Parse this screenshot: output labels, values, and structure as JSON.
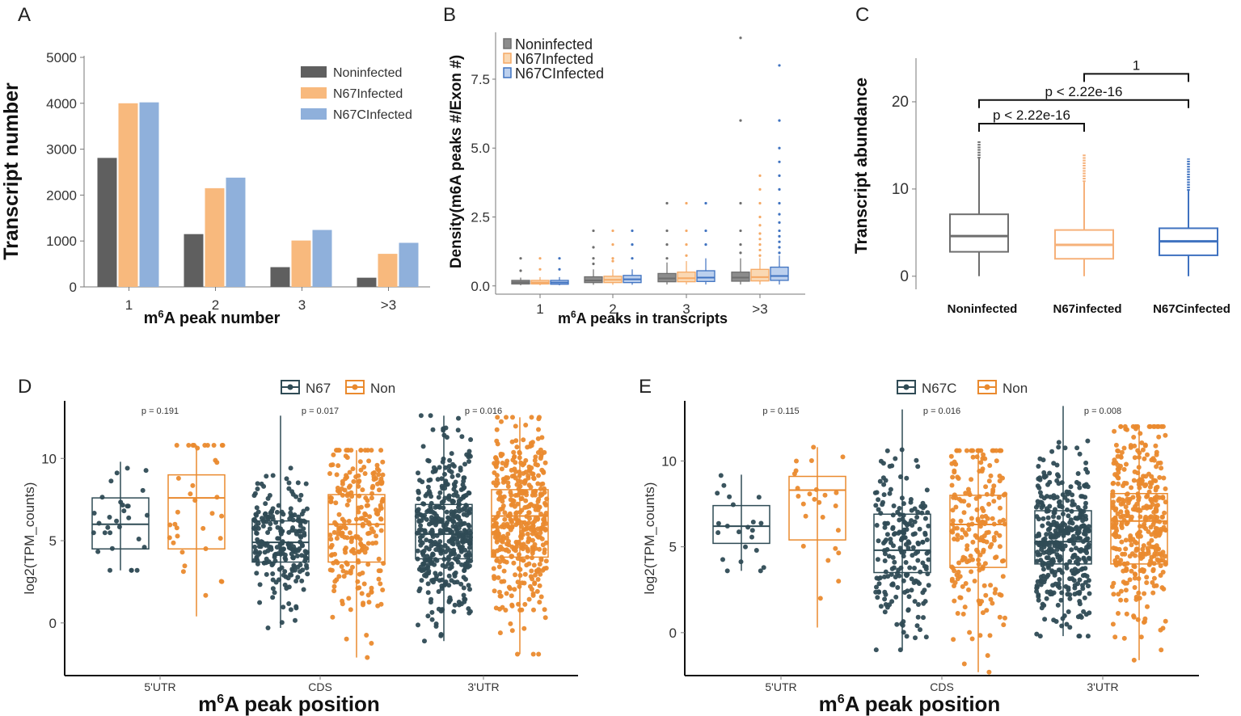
{
  "panels": {
    "A": "A",
    "B": "B",
    "C": "C",
    "D": "D",
    "E": "E"
  },
  "chart_data": [
    {
      "id": "A",
      "type": "bar",
      "categories": [
        "1",
        "2",
        "3",
        ">3"
      ],
      "series": [
        {
          "name": "Noninfected",
          "color": "#5f5f5f",
          "values": [
            2810,
            1150,
            430,
            200
          ]
        },
        {
          "name": "N67Infected",
          "color": "#f8b97d",
          "values": [
            4000,
            2150,
            1010,
            720
          ]
        },
        {
          "name": "N67CInfected",
          "color": "#8fb0db",
          "values": [
            4020,
            2380,
            1240,
            960
          ]
        }
      ],
      "xlabel": "m6A peak number",
      "ylabel": "Transcript number",
      "ylim": [
        0,
        5000
      ],
      "yticks": [
        0,
        1000,
        2000,
        3000,
        4000,
        5000
      ],
      "legend": "top-right"
    },
    {
      "id": "B",
      "type": "box",
      "categories": [
        "1",
        "2",
        "3",
        ">3"
      ],
      "series": [
        {
          "name": "Noninfected",
          "color": "#6e6e6e",
          "fill": "#8c8c8c",
          "boxes": [
            {
              "q1": 0.07,
              "median": 0.13,
              "q3": 0.2,
              "lo": 0.02,
              "hi": 0.3,
              "out": [
                0.55,
                1.0
              ]
            },
            {
              "q1": 0.12,
              "median": 0.2,
              "q3": 0.33,
              "lo": 0.04,
              "hi": 0.6,
              "out": [
                0.8,
                1.0,
                1.4,
                2.0
              ]
            },
            {
              "q1": 0.15,
              "median": 0.27,
              "q3": 0.45,
              "lo": 0.05,
              "hi": 0.85,
              "out": [
                1.0,
                1.5,
                2.0,
                3.0
              ]
            },
            {
              "q1": 0.17,
              "median": 0.3,
              "q3": 0.5,
              "lo": 0.05,
              "hi": 1.0,
              "out": [
                1.2,
                1.5,
                2.0,
                3.0,
                6.0,
                9.0
              ]
            }
          ]
        },
        {
          "name": "N67Infected",
          "color": "#f5a965",
          "fill": "#fad8b3",
          "boxes": [
            {
              "q1": 0.07,
              "median": 0.12,
              "q3": 0.2,
              "lo": 0.02,
              "hi": 0.32,
              "out": [
                0.6,
                1.0
              ]
            },
            {
              "q1": 0.12,
              "median": 0.22,
              "q3": 0.35,
              "lo": 0.04,
              "hi": 0.6,
              "out": [
                0.9,
                1.0,
                1.5,
                2.0
              ]
            },
            {
              "q1": 0.15,
              "median": 0.28,
              "q3": 0.5,
              "lo": 0.05,
              "hi": 0.9,
              "out": [
                1.1,
                1.5,
                2.0,
                3.0
              ]
            },
            {
              "q1": 0.18,
              "median": 0.32,
              "q3": 0.6,
              "lo": 0.05,
              "hi": 1.0,
              "out": [
                1.1,
                1.3,
                1.5,
                1.7,
                1.9,
                2.2,
                2.5,
                3.0,
                3.5,
                4.0
              ]
            }
          ]
        },
        {
          "name": "N67CInfected",
          "color": "#3f72c0",
          "fill": "#bcd0ee",
          "boxes": [
            {
              "q1": 0.06,
              "median": 0.12,
              "q3": 0.2,
              "lo": 0.02,
              "hi": 0.32,
              "out": [
                0.6,
                1.0
              ]
            },
            {
              "q1": 0.12,
              "median": 0.24,
              "q3": 0.38,
              "lo": 0.04,
              "hi": 0.6,
              "out": [
                1.0,
                1.5,
                2.0
              ]
            },
            {
              "q1": 0.16,
              "median": 0.3,
              "q3": 0.55,
              "lo": 0.05,
              "hi": 1.0,
              "out": [
                1.5,
                2.0,
                3.0
              ]
            },
            {
              "q1": 0.2,
              "median": 0.36,
              "q3": 0.68,
              "lo": 0.05,
              "hi": 1.1,
              "out": [
                1.2,
                1.4,
                1.6,
                1.8,
                2.0,
                2.3,
                2.6,
                3.0,
                3.5,
                4.0,
                4.5,
                5.0,
                6.0,
                8.0
              ]
            }
          ]
        }
      ],
      "xlabel": "m6A peaks in transcripts",
      "ylabel": "Density(m6A peaks #/Exon #)",
      "ylim": [
        -0.3,
        9.2
      ],
      "yticks": [
        "0.0",
        "2.5",
        "5.0",
        "7.5"
      ],
      "legend": "top-left"
    },
    {
      "id": "C",
      "type": "box",
      "categories": [
        "Noninfected",
        "N67infected",
        "N67Cinfected"
      ],
      "series": [
        {
          "name": "Noninfected",
          "color": "#6e6e6e",
          "box": {
            "q1": 2.8,
            "median": 4.6,
            "q3": 7.1,
            "lo": 0.0,
            "hi": 13.5,
            "outlier_range": [
              13.5,
              15.5
            ]
          }
        },
        {
          "name": "N67infected",
          "color": "#f6b17a",
          "box": {
            "q1": 2.0,
            "median": 3.6,
            "q3": 5.3,
            "lo": 0.0,
            "hi": 10.8,
            "outlier_range": [
              10.8,
              14.0
            ]
          }
        },
        {
          "name": "N67Cinfected",
          "color": "#3f72c0",
          "box": {
            "q1": 2.4,
            "median": 4.0,
            "q3": 5.5,
            "lo": 0.0,
            "hi": 9.8,
            "outlier_range": [
              9.8,
              13.5
            ]
          }
        }
      ],
      "ylabel": "Transcript abundance",
      "ylim": [
        -1.5,
        25
      ],
      "yticks": [
        0,
        10,
        20
      ],
      "comparisons": [
        {
          "groups": [
            0,
            1
          ],
          "label": "p < 2.22e-16",
          "y": 17.5
        },
        {
          "groups": [
            0,
            2
          ],
          "label": "p < 2.22e-16",
          "y": 20.2
        },
        {
          "groups": [
            1,
            2
          ],
          "label": "1",
          "y": 23.2
        }
      ]
    },
    {
      "id": "D",
      "type": "box",
      "categories": [
        "5'UTR",
        "CDS",
        "3'UTR"
      ],
      "xlabel_prefix": "m",
      "xlabel_sup": "6",
      "xlabel_suffix": "A peak position",
      "ylabel": "log2(TPM_counts)",
      "ylim": [
        -3.2,
        13.5
      ],
      "yticks": [
        0,
        5,
        10
      ],
      "pvalues": [
        "p = 0.191",
        "p = 0.017",
        "p = 0.016"
      ],
      "series": [
        {
          "name": "N67",
          "color": "#2f4b55",
          "boxes": [
            {
              "q1": 4.5,
              "median": 6.0,
              "q3": 7.6,
              "lo": 3.2,
              "hi": 9.8,
              "n": 30
            },
            {
              "q1": 3.7,
              "median": 4.9,
              "q3": 6.2,
              "lo": -0.3,
              "hi": 12.6,
              "n": 230
            },
            {
              "q1": 3.9,
              "median": 5.4,
              "q3": 7.2,
              "lo": -1.1,
              "hi": 12.6,
              "n": 420
            }
          ]
        },
        {
          "name": "Non",
          "color": "#ea8a2e",
          "boxes": [
            {
              "q1": 4.5,
              "median": 7.6,
              "q3": 9.0,
              "lo": 0.4,
              "hi": 10.8,
              "n": 35
            },
            {
              "q1": 3.7,
              "median": 6.0,
              "q3": 7.8,
              "lo": -2.1,
              "hi": 10.5,
              "n": 230
            },
            {
              "q1": 4.0,
              "median": 6.5,
              "q3": 8.1,
              "lo": -1.9,
              "hi": 12.5,
              "n": 420
            }
          ]
        }
      ]
    },
    {
      "id": "E",
      "type": "box",
      "categories": [
        "5'UTR",
        "CDS",
        "3'UTR"
      ],
      "xlabel_prefix": "m",
      "xlabel_sup": "6",
      "xlabel_suffix": "A peak position",
      "ylabel": "log2(TPM_counts)",
      "ylim": [
        -2.5,
        13.5
      ],
      "yticks": [
        0,
        5,
        10
      ],
      "pvalues": [
        "p = 0.115",
        "p = 0.016",
        "p = 0.008"
      ],
      "series": [
        {
          "name": "N67C",
          "color": "#2f4b55",
          "boxes": [
            {
              "q1": 5.2,
              "median": 6.2,
              "q3": 7.4,
              "lo": 3.6,
              "hi": 9.2,
              "n": 22
            },
            {
              "q1": 3.5,
              "median": 4.8,
              "q3": 6.9,
              "lo": -1.0,
              "hi": 13.0,
              "n": 200
            },
            {
              "q1": 4.0,
              "median": 5.3,
              "q3": 7.1,
              "lo": -0.2,
              "hi": 13.2,
              "n": 380
            }
          ]
        },
        {
          "name": "Non",
          "color": "#ea8a2e",
          "boxes": [
            {
              "q1": 5.4,
              "median": 8.3,
              "q3": 9.1,
              "lo": 0.3,
              "hi": 10.8,
              "n": 25
            },
            {
              "q1": 3.8,
              "median": 6.3,
              "q3": 8.0,
              "lo": -2.3,
              "hi": 10.6,
              "n": 200
            },
            {
              "q1": 4.0,
              "median": 6.5,
              "q3": 8.1,
              "lo": -1.6,
              "hi": 12.0,
              "n": 380
            }
          ]
        }
      ]
    }
  ],
  "labels": {
    "a_ylabel": "Transcript number",
    "a_x_m": "m",
    "a_x_sup": "6",
    "a_x_rest": "A peak number",
    "b_ylabel": "Density(m6A peaks #/Exon #)",
    "b_x_m": "m",
    "b_x_sup": "6",
    "b_x_rest": "A peaks in transcripts",
    "c_ylabel": "Transcript abundance"
  }
}
